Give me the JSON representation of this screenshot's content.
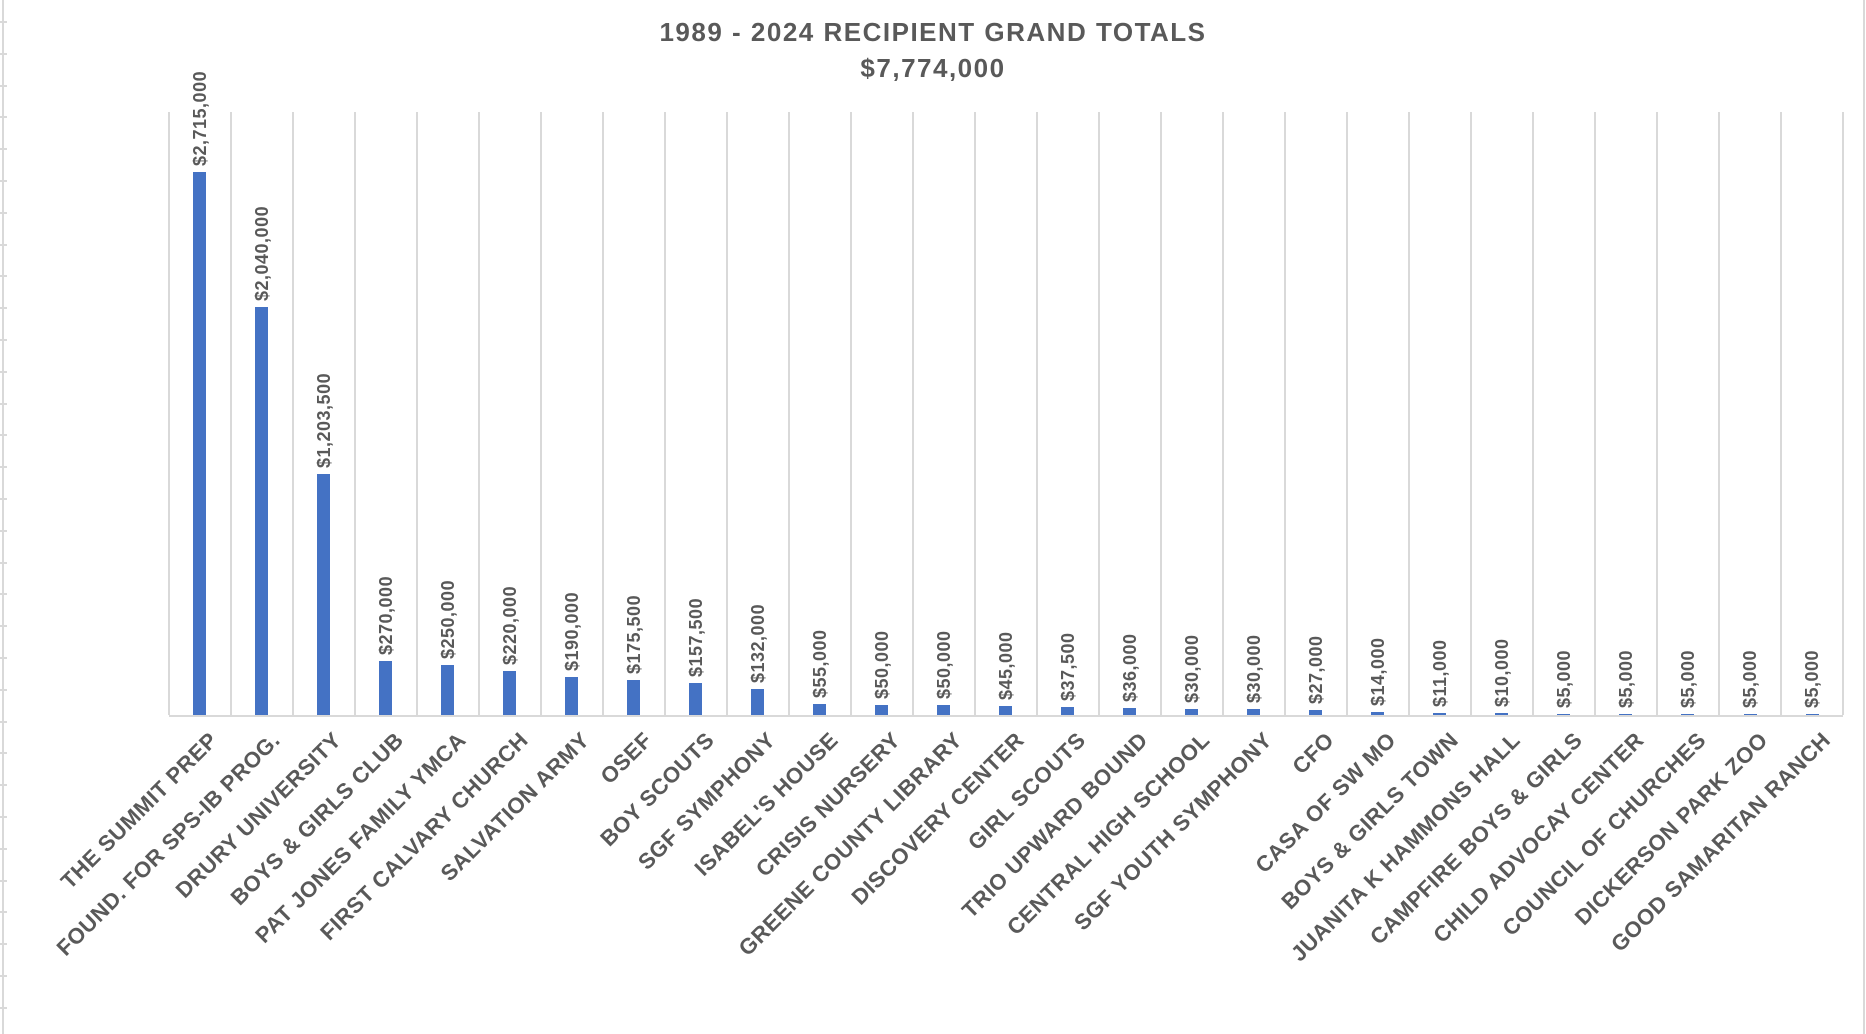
{
  "title": {
    "line1": "1989 - 2024 RECIPIENT GRAND TOTALS",
    "line2": "$7,774,000"
  },
  "chart_data": {
    "type": "bar",
    "title": "1989 - 2024 RECIPIENT GRAND TOTALS",
    "subtitle": "$7,774,000",
    "grand_total": "$7,774,000",
    "categories": [
      "THE SUMMIT PREP",
      "FOUND. FOR SPS-IB PROG.",
      "DRURY UNIVERSITY",
      "BOYS & GIRLS CLUB",
      "PAT JONES FAMILY YMCA",
      "FIRST CALVARY CHURCH",
      "SALVATION ARMY",
      "OSEF",
      "BOY SCOUTS",
      "SGF SYMPHONY",
      "ISABEL'S HOUSE",
      "CRISIS NURSERY",
      "GREENE COUNTY LIBRARY",
      "DISCOVERY CENTER",
      "GIRL SCOUTS",
      "TRIO UPWARD BOUND",
      "CENTRAL HIGH SCHOOL",
      "SGF YOUTH SYMPHONY",
      "CFO",
      "CASA OF SW MO",
      "BOYS & GIRLS TOWN",
      "JUANITA K HAMMONS HALL",
      "CAMPFIRE BOYS & GIRLS",
      "CHILD ADVOCAY CENTER",
      "COUNCIL OF CHURCHES",
      "DICKERSON PARK ZOO",
      "GOOD SAMARITAN RANCH"
    ],
    "values": [
      2715000,
      2040000,
      1203500,
      270000,
      250000,
      220000,
      190000,
      175500,
      157500,
      132000,
      55000,
      50000,
      50000,
      45000,
      37500,
      36000,
      30000,
      30000,
      27000,
      14000,
      11000,
      10000,
      5000,
      5000,
      5000,
      5000,
      5000
    ],
    "data_labels": [
      "$2,715,000",
      "$2,040,000",
      "$1,203,500",
      "$270,000",
      "$250,000",
      "$220,000",
      "$190,000",
      "$175,500",
      "$157,500",
      "$132,000",
      "$55,000",
      "$50,000",
      "$50,000",
      "$45,000",
      "$37,500",
      "$36,000",
      "$30,000",
      "$30,000",
      "$27,000",
      "$14,000",
      "$11,000",
      "$10,000",
      "$5,000",
      "$5,000",
      "$5,000",
      "$5,000",
      "$5,000"
    ],
    "xlabel": "",
    "ylabel": "",
    "ylim": [
      0,
      3000000
    ],
    "grid": "vertical-only",
    "legend_position": "none",
    "y_axis_tick_labels_visible": false,
    "category_label_rotation_deg": 45,
    "data_label_rotation_deg": 90,
    "colors": {
      "bar_fill": "#4472c4",
      "gridline": "#d9d9d9",
      "axis_line": "#d9d9d9",
      "text": "#595959",
      "background": "#ffffff"
    }
  }
}
